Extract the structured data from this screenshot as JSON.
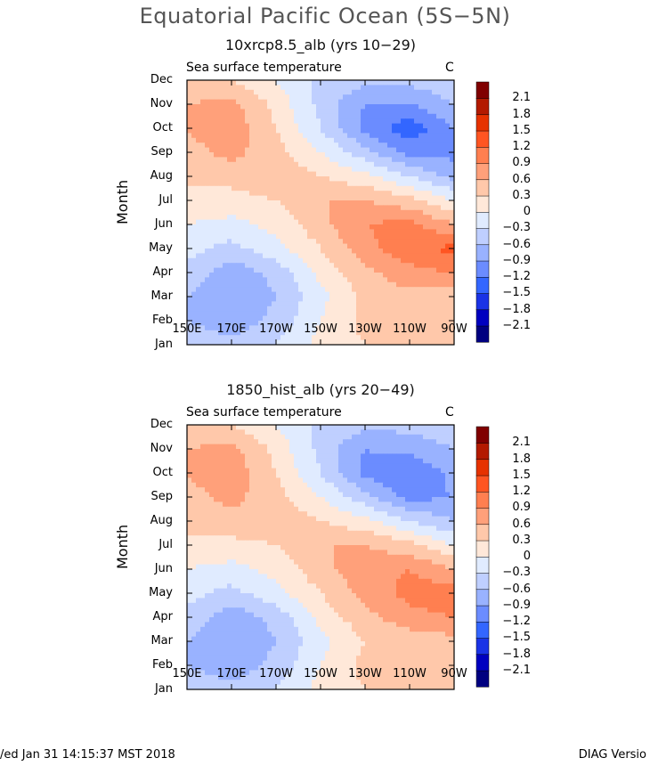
{
  "title": "Equatorial Pacific Ocean (5S−5N)",
  "colors": {
    "levels": [
      "#000080",
      "#0000c0",
      "#1a33e6",
      "#3366ff",
      "#6b8cff",
      "#99b2ff",
      "#bfcfff",
      "#e0ebff",
      "#ffe8d9",
      "#ffc8aa",
      "#ffa07a",
      "#ff7f50",
      "#ff5522",
      "#e63200",
      "#b31a00",
      "#800000"
    ],
    "contours": [
      -2.4,
      -2.1,
      -1.8,
      -1.5,
      -1.2,
      -0.9,
      -0.6,
      -0.3,
      0,
      0.3,
      0.6,
      0.9,
      1.2,
      1.5,
      1.8,
      2.1,
      2.4
    ]
  },
  "panels": [
    {
      "title": "10xrcp8.5_alb (yrs 10−29)",
      "variable": "Sea surface temperature",
      "units": "C",
      "ylabel": "Month",
      "months": [
        "Jan",
        "Feb",
        "Mar",
        "Apr",
        "May",
        "Jun",
        "Jul",
        "Aug",
        "Sep",
        "Oct",
        "Nov",
        "Dec"
      ],
      "xticks": [
        "150E",
        "170E",
        "170W",
        "150W",
        "130W",
        "110W",
        "90W"
      ],
      "cbar_labels": [
        "2.1",
        "1.8",
        "1.5",
        "1.2",
        "0.9",
        "0.6",
        "0.3",
        "0",
        "−0.3",
        "−0.6",
        "−0.9",
        "−1.2",
        "−1.5",
        "−1.8",
        "−2.1"
      ]
    },
    {
      "title": "1850_hist_alb (yrs 20−49)",
      "variable": "Sea surface temperature",
      "units": "C",
      "ylabel": "Month",
      "months": [
        "Jan",
        "Feb",
        "Mar",
        "Apr",
        "May",
        "Jun",
        "Jul",
        "Aug",
        "Sep",
        "Oct",
        "Nov",
        "Dec"
      ],
      "xticks": [
        "150E",
        "170E",
        "170W",
        "150W",
        "130W",
        "110W",
        "90W"
      ],
      "cbar_labels": [
        "2.1",
        "1.8",
        "1.5",
        "1.2",
        "0.9",
        "0.6",
        "0.3",
        "0",
        "−0.3",
        "−0.6",
        "−0.9",
        "−1.2",
        "−1.5",
        "−1.8",
        "−2.1"
      ]
    }
  ],
  "chart_data": [
    {
      "type": "heatmap",
      "title": "10xrcp8.5_alb (yrs 10−29)",
      "subtitle": "Sea surface temperature",
      "units": "C",
      "xlabel": "",
      "ylabel": "Month",
      "x": [
        150,
        170,
        190,
        210,
        230,
        250,
        270
      ],
      "x_ticklabels": [
        "150E",
        "170E",
        "170W",
        "150W",
        "130W",
        "110W",
        "90W"
      ],
      "y": [
        "Jan",
        "Feb",
        "Mar",
        "Apr",
        "May",
        "Jun",
        "Jul",
        "Aug",
        "Sep",
        "Oct",
        "Nov",
        "Dec"
      ],
      "levels": [
        -2.1,
        -1.8,
        -1.5,
        -1.2,
        -0.9,
        -0.6,
        -0.3,
        0,
        0.3,
        0.6,
        0.9,
        1.2,
        1.5,
        1.8,
        2.1
      ],
      "z": [
        [
          -0.4,
          -0.5,
          -0.3,
          0.1,
          0.3,
          0.4,
          0.3
        ],
        [
          -0.6,
          -0.8,
          -0.5,
          0.0,
          0.4,
          0.5,
          0.3
        ],
        [
          -0.6,
          -0.9,
          -0.6,
          -0.1,
          0.4,
          0.5,
          0.4
        ],
        [
          -0.4,
          -0.8,
          -0.5,
          0.1,
          0.5,
          0.8,
          0.9
        ],
        [
          -0.2,
          -0.4,
          -0.1,
          0.3,
          0.8,
          1.1,
          1.3
        ],
        [
          0.0,
          -0.1,
          0.1,
          0.5,
          0.9,
          1.0,
          0.6
        ],
        [
          0.2,
          0.2,
          0.3,
          0.6,
          0.6,
          0.4,
          0.0
        ],
        [
          0.4,
          0.4,
          0.5,
          0.3,
          0.1,
          -0.3,
          -0.7
        ],
        [
          0.5,
          0.7,
          0.4,
          0.0,
          -0.5,
          -1.0,
          -1.0
        ],
        [
          0.6,
          0.8,
          0.3,
          -0.3,
          -1.0,
          -1.4,
          -0.9
        ],
        [
          0.6,
          0.7,
          0.2,
          -0.4,
          -0.9,
          -0.9,
          -0.6
        ],
        [
          0.3,
          0.3,
          0.0,
          -0.4,
          -0.5,
          -0.5,
          -0.4
        ]
      ]
    },
    {
      "type": "heatmap",
      "title": "1850_hist_alb (yrs 20−49)",
      "subtitle": "Sea surface temperature",
      "units": "C",
      "xlabel": "",
      "ylabel": "Month",
      "x": [
        150,
        170,
        190,
        210,
        230,
        250,
        270
      ],
      "x_ticklabels": [
        "150E",
        "170E",
        "170W",
        "150W",
        "130W",
        "110W",
        "90W"
      ],
      "y": [
        "Jan",
        "Feb",
        "Mar",
        "Apr",
        "May",
        "Jun",
        "Jul",
        "Aug",
        "Sep",
        "Oct",
        "Nov",
        "Dec"
      ],
      "levels": [
        -2.1,
        -1.8,
        -1.5,
        -1.2,
        -0.9,
        -0.6,
        -0.3,
        0,
        0.3,
        0.6,
        0.9,
        1.2,
        1.5,
        1.8,
        2.1
      ],
      "z": [
        [
          -0.4,
          -0.5,
          -0.3,
          0.1,
          0.3,
          0.4,
          0.3
        ],
        [
          -0.6,
          -0.8,
          -0.5,
          0.0,
          0.4,
          0.5,
          0.3
        ],
        [
          -0.6,
          -0.9,
          -0.6,
          -0.1,
          0.3,
          0.4,
          0.5
        ],
        [
          -0.4,
          -0.8,
          -0.5,
          0.1,
          0.5,
          0.8,
          0.9
        ],
        [
          -0.2,
          -0.4,
          -0.1,
          0.3,
          0.7,
          1.0,
          1.1
        ],
        [
          0.0,
          -0.1,
          0.1,
          0.5,
          0.8,
          0.9,
          0.6
        ],
        [
          0.2,
          0.2,
          0.3,
          0.6,
          0.6,
          0.4,
          0.0
        ],
        [
          0.4,
          0.5,
          0.5,
          0.3,
          0.1,
          -0.3,
          -0.6
        ],
        [
          0.5,
          0.7,
          0.4,
          0.0,
          -0.5,
          -1.0,
          -0.9
        ],
        [
          0.6,
          0.8,
          0.3,
          -0.3,
          -1.0,
          -1.2,
          -0.8
        ],
        [
          0.6,
          0.7,
          0.2,
          -0.4,
          -0.9,
          -0.8,
          -0.6
        ],
        [
          0.3,
          0.3,
          0.0,
          -0.4,
          -0.5,
          -0.5,
          -0.4
        ]
      ]
    }
  ],
  "footer": {
    "date": "/ed Jan 31 14:15:37 MST 2018",
    "diag": "DIAG Versio"
  }
}
